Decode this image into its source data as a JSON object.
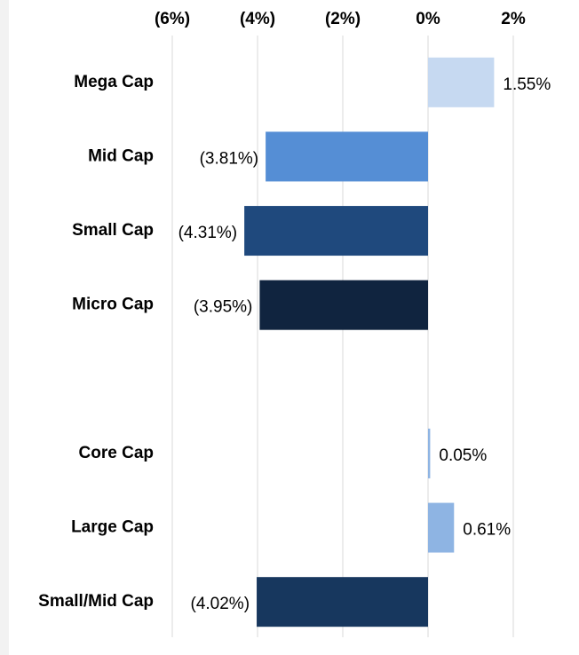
{
  "chart_data": {
    "type": "hbar",
    "categories": [
      "Mega Cap",
      "Mid Cap",
      "Small Cap",
      "Micro Cap",
      null,
      "Core Cap",
      "Large Cap",
      "Small/Mid Cap"
    ],
    "values": [
      1.55,
      -3.81,
      -4.31,
      -3.95,
      null,
      0.05,
      0.61,
      -4.02
    ],
    "value_labels": [
      "1.55%",
      "(3.81%)",
      "(4.31%)",
      "(3.95%)",
      null,
      "0.05%",
      "0.61%",
      "(4.02%)"
    ],
    "colors": [
      "#c6d9f1",
      "#558ed5",
      "#1f497d",
      "#10243f",
      null,
      "#8eb4e3",
      "#8eb4e3",
      "#17375e"
    ],
    "xlim": [
      -6,
      3
    ],
    "xticks": [
      {
        "value": -6,
        "label": "(6%)"
      },
      {
        "value": -4,
        "label": "(4%)"
      },
      {
        "value": -2,
        "label": "(2%)"
      },
      {
        "value": 0,
        "label": "0%"
      },
      {
        "value": 2,
        "label": "2%"
      }
    ],
    "grid": true
  }
}
